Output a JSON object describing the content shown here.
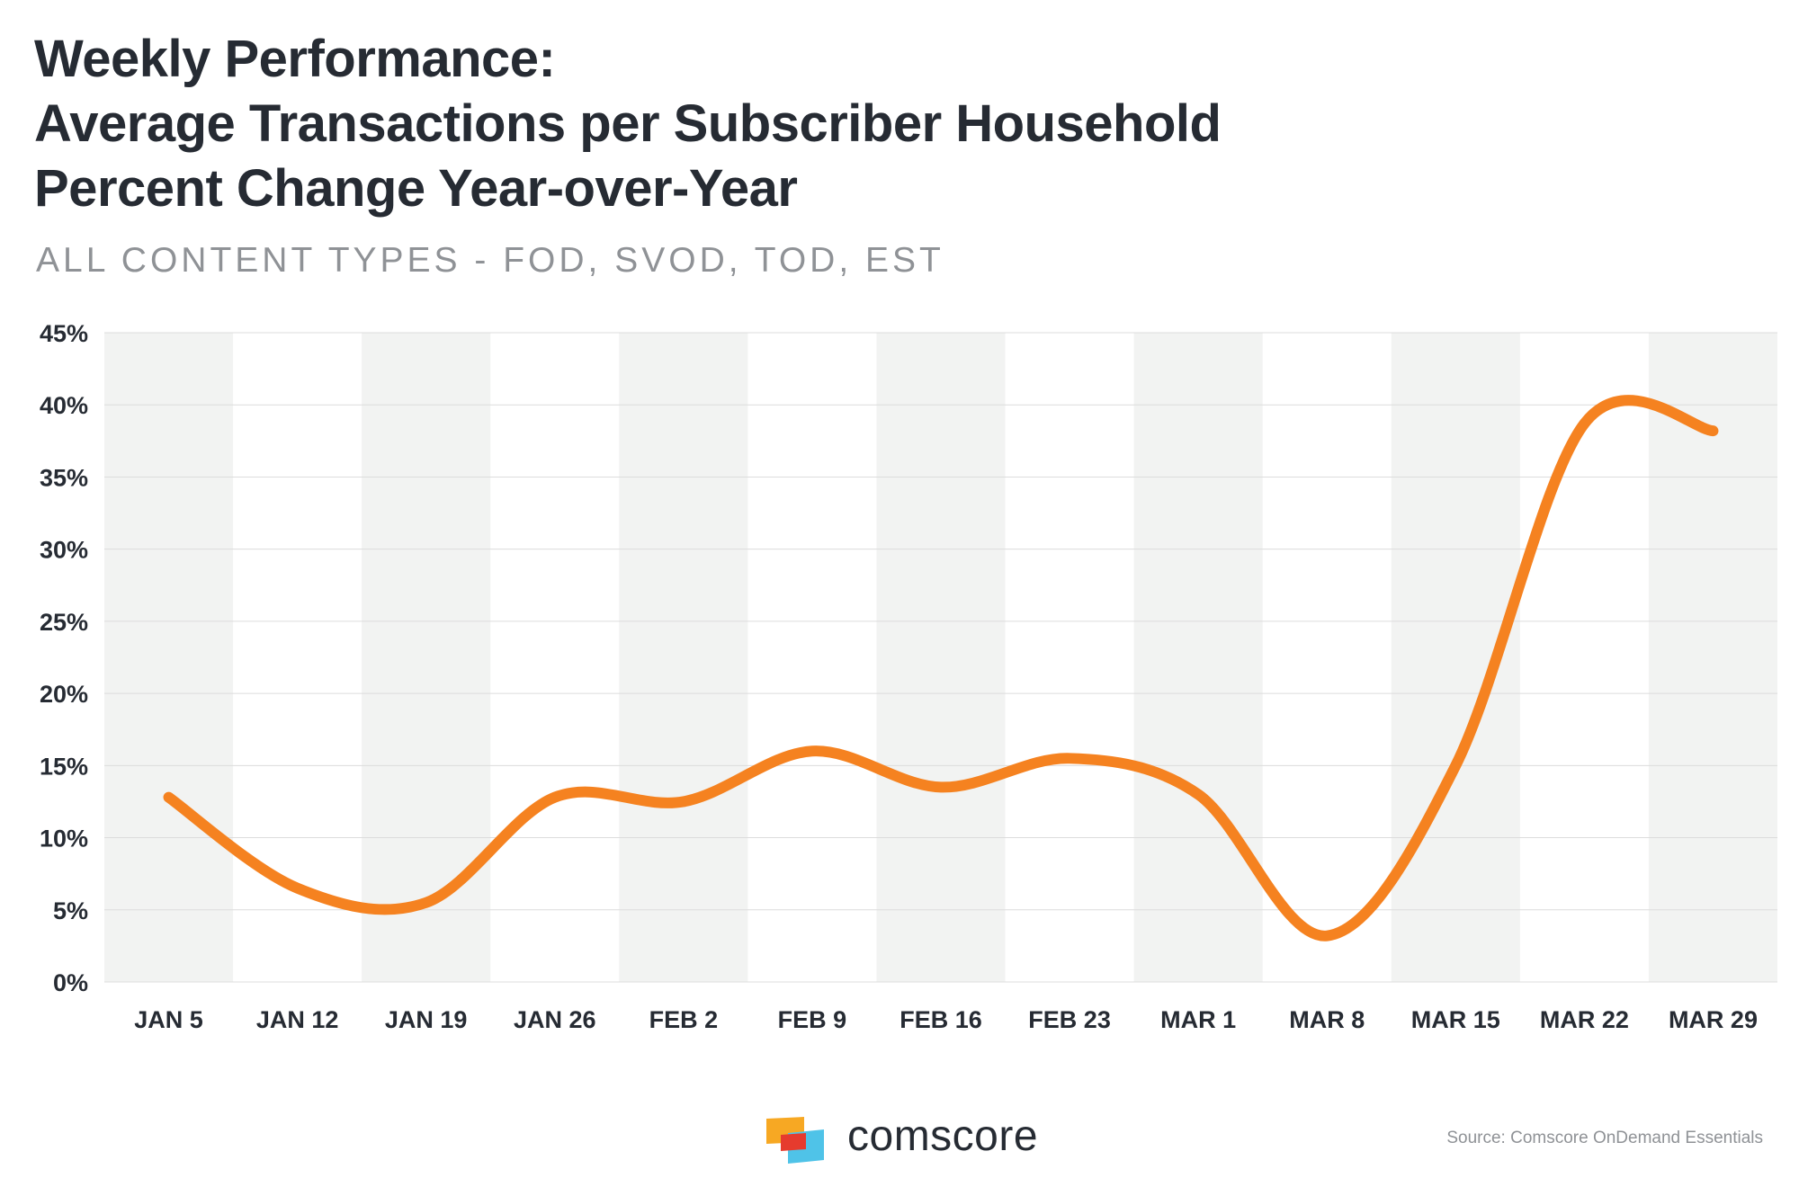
{
  "chart_data": {
    "type": "line",
    "title": [
      "Weekly Performance:",
      "Average Transactions per Subscriber Household",
      "Percent Change Year-over-Year"
    ],
    "subtitle": "ALL CONTENT TYPES - FOD, SVOD, TOD, EST",
    "categories": [
      "JAN 5",
      "JAN 12",
      "JAN 19",
      "JAN 26",
      "FEB 2",
      "FEB 9",
      "FEB 16",
      "FEB 23",
      "MAR 1",
      "MAR 8",
      "MAR 15",
      "MAR 22",
      "MAR 29"
    ],
    "series": [
      {
        "name": "Average Transactions per Subscriber Household % Change YoY",
        "values": [
          12.8,
          6.5,
          5.5,
          12.8,
          12.5,
          16.0,
          13.5,
          15.5,
          13.0,
          3.2,
          15.0,
          38.7,
          38.2
        ]
      }
    ],
    "ylim": [
      0,
      45
    ],
    "yticks": [
      0,
      5,
      10,
      15,
      20,
      25,
      30,
      35,
      40,
      45
    ],
    "ytick_labels": [
      "0%",
      "5%",
      "10%",
      "15%",
      "20%",
      "25%",
      "30%",
      "35%",
      "40%",
      "45%"
    ],
    "xlabel": "",
    "ylabel": "",
    "grid": true,
    "legend": "none"
  },
  "colors": {
    "line": "#f58220",
    "band": "#f2f3f2",
    "gridline": "#dcdcdc",
    "text": "#262b33",
    "muted": "#8f9296",
    "logo_orange": "#f7a823",
    "logo_red": "#e63b2e",
    "logo_blue": "#4fc3e8"
  },
  "branding": {
    "logo_text": "comscore"
  },
  "footer": {
    "source": "Source: Comscore OnDemand Essentials"
  }
}
